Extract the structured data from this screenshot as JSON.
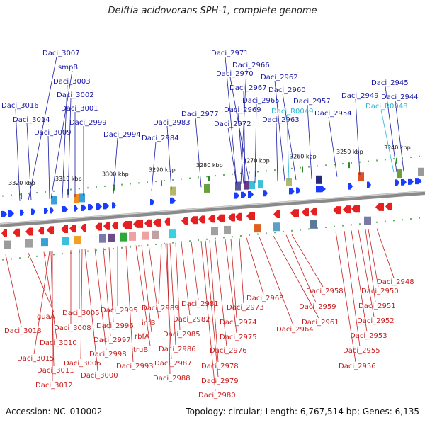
{
  "title": "Delftia acidovorans SPH-1, complete genome",
  "footer": {
    "accession": "Accession: NC_010002",
    "summary": "Topology: circular; Length: 6,767,514 bp; Genes: 6,135"
  },
  "colors": {
    "forward_label": "#1a1aa6",
    "reverse_label": "#c81e1e",
    "rna_label": "#2bb7d6",
    "forward_gene": "#1a3cff",
    "reverse_gene": "#e62020",
    "backbone": "#8a8a8a",
    "tick": "#2c8a2c"
  },
  "scale_ticks": [
    "3320 kbp",
    "3310 kbp",
    "3300 kbp",
    "3290 kbp",
    "3280 kbp",
    "3270 kbp",
    "3260 kbp",
    "3250 kbp",
    "3240 kbp"
  ],
  "forward_labels": [
    "Daci_3007",
    "smpB",
    "Daci_3003",
    "Daci_3002",
    "Daci_3001",
    "Daci_2999",
    "Daci_3016",
    "Daci_3014",
    "Daci_3009",
    "Daci_2994",
    "Daci_2984",
    "Daci_2983",
    "Daci_2977",
    "Daci_2971",
    "Daci_2966",
    "Daci_2970",
    "Daci_2967",
    "Daci_2965",
    "Daci_2969",
    "Daci_2972",
    "Daci_2962",
    "Daci_2960",
    "Daci_2963",
    "Daci_2957",
    "Daci_2954",
    "Daci_2949",
    "Daci_2945",
    "Daci_2944"
  ],
  "rna_labels": [
    "Daci_R0049",
    "Daci_R0048"
  ],
  "reverse_labels": [
    "Daci_3018",
    "guaA",
    "Daci_3010",
    "Daci_3015",
    "Daci_3011",
    "Daci_3012",
    "Daci_3008",
    "Daci_3005",
    "Daci_3006",
    "Daci_3000",
    "Daci_2998",
    "Daci_2997",
    "Daci_2996",
    "Daci_2995",
    "Daci_2993",
    "truB",
    "rbfA",
    "infB",
    "Daci_2989",
    "Daci_2987",
    "Daci_2986",
    "Daci_2988",
    "Daci_2985",
    "Daci_2982",
    "Daci_2981",
    "Daci_2980",
    "Daci_2979",
    "Daci_2978",
    "Daci_2976",
    "Daci_2975",
    "Daci_2974",
    "Daci_2973",
    "Daci_2968",
    "Daci_2964",
    "Daci_2961",
    "Daci_2959",
    "Daci_2958",
    "Daci_2956",
    "Daci_2955",
    "Daci_2953",
    "Daci_2952",
    "Daci_2951",
    "Daci_2950",
    "Daci_2948"
  ]
}
